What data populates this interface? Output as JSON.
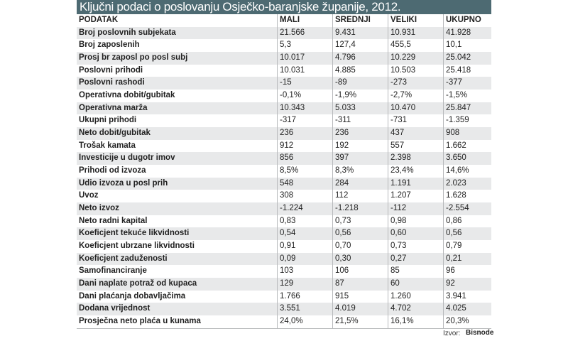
{
  "title": "Ključni podaci o poslovanju Osječko-baranjske županije, 2012.",
  "table": {
    "header": [
      "PODATAK",
      "MALI",
      "SREDNJI",
      "VELIKI",
      "UKUPNO"
    ],
    "rows": [
      [
        "Broj poslovnih subjekata",
        "21.566",
        "9.431",
        "10.931",
        "41.928"
      ],
      [
        "Broj zaposlenih",
        "5,3",
        "127,4",
        "455,5",
        "10,1"
      ],
      [
        "Prosj br zaposl po posl subj",
        "10.017",
        "4.796",
        "10.229",
        "25.042"
      ],
      [
        "Poslovni prihodi",
        "10.031",
        "4.885",
        "10.503",
        "25.418"
      ],
      [
        "Poslovni rashodi",
        "-15",
        "-89",
        "-273",
        "-377"
      ],
      [
        "Operativna dobit/gubitak",
        "-0,1%",
        "-1,9%",
        "-2,7%",
        "-1,5%"
      ],
      [
        "Operativna marža",
        "10.343",
        "5.033",
        "10.470",
        "25.847"
      ],
      [
        "Ukupni prihodi",
        "-317",
        "-311",
        "-731",
        "-1.359"
      ],
      [
        "Neto dobit/gubitak",
        "236",
        "236",
        "437",
        "908"
      ],
      [
        "Trošak kamata",
        "912",
        "192",
        "557",
        "1.662"
      ],
      [
        "Investicije u dugotr imov",
        "856",
        "397",
        "2.398",
        "3.650"
      ],
      [
        "Prihodi od izvoza",
        "8,5%",
        "8,3%",
        "23,4%",
        "14,6%"
      ],
      [
        "Udio izvoza u posl prih",
        "548",
        "284",
        "1.191",
        "2.023"
      ],
      [
        "Uvoz",
        "308",
        "112",
        "1.207",
        "1.628"
      ],
      [
        "Neto izvoz",
        "-1.224",
        "-1.218",
        "-112",
        "-2.554"
      ],
      [
        "Neto radni kapital",
        "0,83",
        "0,73",
        "0,98",
        "0,86"
      ],
      [
        "Koeficjent tekuće likvidnosti",
        "0,54",
        "0,56",
        "0,60",
        "0,56"
      ],
      [
        "Koeficjent ubrzane likvidnosti",
        "0,91",
        "0,70",
        "0,73",
        "0,79"
      ],
      [
        "Koeficjent zaduženosti",
        "0,09",
        "0,30",
        "0,27",
        "0,21"
      ],
      [
        "Samofinanciranje",
        "103",
        "106",
        "85",
        "96"
      ],
      [
        "Dani naplate potraž od kupaca",
        "129",
        "87",
        "60",
        "92"
      ],
      [
        "Dani plaćanja dobavljačima",
        "1.766",
        "915",
        "1.260",
        "3.941"
      ],
      [
        "Dodana vrijednost",
        "3.551",
        "4.019",
        "4.702",
        "4.025"
      ],
      [
        "Prosječna neto plaća u kunama",
        "24,0%",
        "21,5%",
        "16,1%",
        "20,3%"
      ]
    ]
  },
  "source": {
    "label": "Izvor:",
    "logo": "Bisnode"
  }
}
